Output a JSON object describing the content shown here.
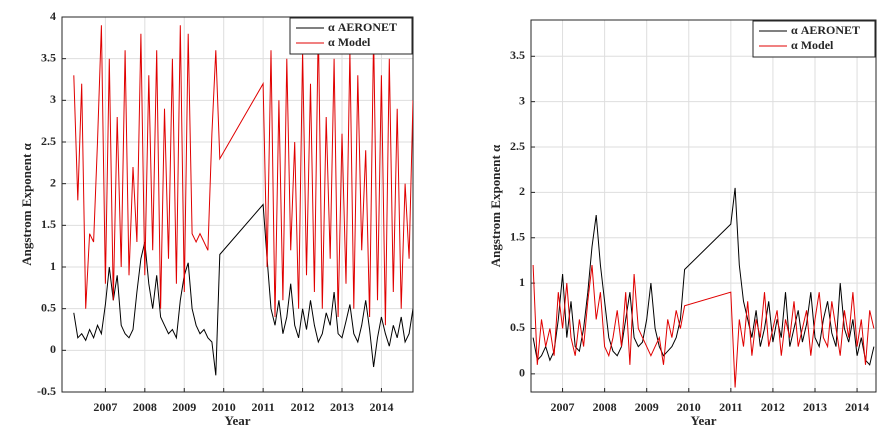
{
  "chart_data": [
    {
      "type": "line",
      "xlabel": "Year",
      "ylabel": "Angstrom Exponent α",
      "xlim": [
        2005.9,
        2014.8
      ],
      "xticks": [
        2007,
        2008,
        2009,
        2010,
        2011,
        2012,
        2013,
        2014
      ],
      "ylim": [
        -0.5,
        4
      ],
      "yticks": [
        {
          "value": -0.5,
          "label": "-0.5"
        },
        0,
        0.5,
        1,
        1.5,
        2,
        2.5,
        3,
        3.5,
        4
      ],
      "grid": true,
      "legend": "upper right",
      "x": [
        2006.2,
        2006.3,
        2006.4,
        2006.5,
        2006.6,
        2006.7,
        2006.8,
        2006.9,
        2007.0,
        2007.1,
        2007.2,
        2007.3,
        2007.4,
        2007.5,
        2007.6,
        2007.7,
        2007.8,
        2007.9,
        2008.0,
        2008.1,
        2008.2,
        2008.3,
        2008.4,
        2008.5,
        2008.6,
        2008.7,
        2008.8,
        2008.9,
        2009.0,
        2009.1,
        2009.2,
        2009.3,
        2009.4,
        2009.5,
        2009.6,
        2009.7,
        2009.8,
        2009.9,
        2011.0,
        2011.1,
        2011.2,
        2011.3,
        2011.4,
        2011.5,
        2011.6,
        2011.7,
        2011.8,
        2011.9,
        2012.0,
        2012.1,
        2012.2,
        2012.3,
        2012.4,
        2012.5,
        2012.6,
        2012.7,
        2012.8,
        2012.9,
        2013.0,
        2013.1,
        2013.2,
        2013.3,
        2013.4,
        2013.5,
        2013.6,
        2013.7,
        2013.8,
        2013.9,
        2014.0,
        2014.1,
        2014.2,
        2014.3,
        2014.4,
        2014.5,
        2014.6,
        2014.7,
        2014.8
      ],
      "series": [
        {
          "name": "α AERONET",
          "color": "#000000",
          "values": [
            0.45,
            0.15,
            0.2,
            0.12,
            0.25,
            0.15,
            0.3,
            0.2,
            0.55,
            1.0,
            0.6,
            0.9,
            0.3,
            0.2,
            0.15,
            0.25,
            0.7,
            1.1,
            1.3,
            0.8,
            0.5,
            0.9,
            0.4,
            0.3,
            0.2,
            0.25,
            0.15,
            0.6,
            0.9,
            1.05,
            0.5,
            0.3,
            0.2,
            0.25,
            0.15,
            0.1,
            -0.3,
            1.15,
            1.75,
            1.1,
            0.5,
            0.3,
            0.6,
            0.2,
            0.4,
            0.8,
            0.3,
            0.15,
            0.5,
            0.25,
            0.6,
            0.3,
            0.1,
            0.2,
            0.45,
            0.3,
            0.7,
            0.2,
            0.15,
            0.35,
            0.55,
            0.2,
            0.1,
            0.3,
            0.6,
            0.25,
            -0.2,
            0.15,
            0.4,
            0.2,
            0.05,
            0.3,
            0.15,
            0.4,
            0.1,
            0.2,
            0.5
          ]
        },
        {
          "name": "α Model",
          "color": "#e00000",
          "values": [
            3.3,
            1.8,
            3.2,
            0.5,
            1.4,
            1.3,
            2.5,
            3.9,
            0.8,
            3.5,
            0.6,
            2.8,
            1.0,
            3.6,
            0.9,
            2.2,
            1.3,
            3.8,
            0.9,
            3.3,
            1.2,
            3.6,
            0.5,
            2.9,
            1.1,
            3.5,
            0.8,
            3.9,
            0.7,
            3.8,
            1.4,
            1.3,
            1.4,
            1.3,
            1.2,
            2.6,
            3.6,
            2.3,
            3.2,
            1.0,
            3.6,
            0.4,
            3.0,
            0.6,
            3.5,
            1.2,
            2.5,
            0.5,
            3.6,
            0.9,
            3.2,
            0.7,
            3.9,
            0.5,
            2.8,
            1.1,
            3.5,
            0.4,
            2.6,
            0.8,
            3.6,
            0.5,
            3.3,
            1.2,
            2.4,
            0.4,
            3.8,
            0.6,
            3.3,
            0.3,
            3.5,
            0.7,
            2.9,
            0.5,
            2.0,
            1.1,
            3.0
          ]
        }
      ]
    },
    {
      "type": "line",
      "xlabel": "Year",
      "ylabel": "Angstrom Exponent α",
      "xlim": [
        2006.25,
        2014.45
      ],
      "xticks": [
        2007,
        2008,
        2009,
        2010,
        2011,
        2012,
        2013,
        2014
      ],
      "ylim": [
        -0.2,
        3.9
      ],
      "yticks": [
        0,
        0.5,
        1,
        1.5,
        2,
        2.5,
        3,
        3.5
      ],
      "grid": true,
      "legend": "upper right",
      "x": [
        2006.3,
        2006.4,
        2006.5,
        2006.6,
        2006.7,
        2006.8,
        2006.9,
        2007.0,
        2007.1,
        2007.2,
        2007.3,
        2007.4,
        2007.5,
        2007.6,
        2007.7,
        2007.8,
        2007.9,
        2008.0,
        2008.1,
        2008.2,
        2008.3,
        2008.4,
        2008.5,
        2008.6,
        2008.7,
        2008.8,
        2008.9,
        2009.0,
        2009.1,
        2009.2,
        2009.3,
        2009.4,
        2009.5,
        2009.6,
        2009.7,
        2009.8,
        2009.9,
        2011.0,
        2011.1,
        2011.2,
        2011.3,
        2011.4,
        2011.5,
        2011.6,
        2011.7,
        2011.8,
        2011.9,
        2012.0,
        2012.1,
        2012.2,
        2012.3,
        2012.4,
        2012.5,
        2012.6,
        2012.7,
        2012.8,
        2012.9,
        2013.0,
        2013.1,
        2013.2,
        2013.3,
        2013.4,
        2013.5,
        2013.6,
        2013.7,
        2013.8,
        2013.9,
        2014.0,
        2014.1,
        2014.2,
        2014.3,
        2014.4
      ],
      "series": [
        {
          "name": "α AERONET",
          "color": "#000000",
          "values": [
            0.4,
            0.15,
            0.2,
            0.3,
            0.15,
            0.25,
            0.6,
            1.1,
            0.4,
            0.8,
            0.3,
            0.25,
            0.5,
            0.9,
            1.4,
            1.75,
            1.2,
            0.8,
            0.4,
            0.25,
            0.2,
            0.3,
            0.6,
            0.9,
            0.4,
            0.3,
            0.35,
            0.6,
            1.0,
            0.5,
            0.3,
            0.2,
            0.25,
            0.3,
            0.4,
            0.6,
            1.15,
            1.65,
            2.05,
            1.2,
            0.8,
            0.6,
            0.4,
            0.7,
            0.3,
            0.5,
            0.8,
            0.35,
            0.6,
            0.4,
            0.9,
            0.3,
            0.5,
            0.7,
            0.35,
            0.55,
            0.9,
            0.4,
            0.3,
            0.6,
            0.8,
            0.45,
            0.3,
            1.0,
            0.5,
            0.35,
            0.6,
            0.2,
            0.4,
            0.15,
            0.1,
            0.3
          ]
        },
        {
          "name": "α Model",
          "color": "#e00000",
          "values": [
            1.2,
            0.1,
            0.6,
            0.3,
            0.5,
            0.2,
            0.9,
            0.5,
            1.0,
            0.4,
            0.2,
            0.6,
            0.3,
            0.8,
            1.2,
            0.6,
            0.9,
            0.3,
            0.2,
            0.4,
            0.7,
            0.3,
            0.9,
            0.1,
            1.1,
            0.5,
            0.4,
            0.3,
            0.2,
            0.3,
            0.4,
            0.1,
            0.6,
            0.4,
            0.7,
            0.5,
            0.75,
            0.9,
            -0.15,
            0.6,
            0.3,
            0.8,
            0.2,
            0.6,
            0.4,
            0.9,
            0.3,
            0.5,
            0.7,
            0.2,
            0.6,
            0.4,
            0.8,
            0.3,
            0.5,
            0.7,
            0.2,
            0.6,
            0.9,
            0.4,
            0.3,
            0.8,
            0.5,
            0.2,
            0.7,
            0.4,
            0.9,
            0.3,
            0.6,
            0.1,
            0.7,
            0.5
          ]
        }
      ]
    }
  ]
}
